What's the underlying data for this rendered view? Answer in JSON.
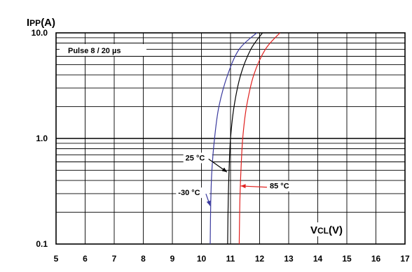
{
  "chart_data": {
    "type": "line",
    "y_label_main": "I",
    "y_label_sub": "PP",
    "y_label_unit": "(A)",
    "x_label_main": "V",
    "x_label_sub": "CL",
    "x_label_unit": "(V)",
    "x_ticks": [
      "5",
      "6",
      "7",
      "8",
      "9",
      "10",
      "11",
      "12",
      "13",
      "14",
      "15",
      "16",
      "17"
    ],
    "y_ticks": [
      "0.1",
      "1.0",
      "10.0"
    ],
    "xlim": [
      5,
      17
    ],
    "ylim": [
      0.1,
      10
    ],
    "y_scale": "log",
    "grid": true,
    "note": "Pulse 8 / 20 µs",
    "colors": {
      "n30": "#3a3a9e",
      "p25": "#000000",
      "p85": "#e0201e",
      "grid": "#000000"
    },
    "series": [
      {
        "name": "-30 °C",
        "points": [
          [
            10.3,
            0.1
          ],
          [
            10.32,
            0.25
          ],
          [
            10.36,
            0.5
          ],
          [
            10.45,
            1.0
          ],
          [
            10.6,
            2.0
          ],
          [
            10.9,
            4.0
          ],
          [
            11.3,
            7.0
          ],
          [
            11.9,
            10.0
          ]
        ]
      },
      {
        "name": "25 °C",
        "points": [
          [
            10.9,
            0.1
          ],
          [
            10.92,
            0.25
          ],
          [
            10.95,
            0.5
          ],
          [
            11.0,
            1.0
          ],
          [
            11.12,
            2.0
          ],
          [
            11.35,
            4.0
          ],
          [
            11.7,
            7.0
          ],
          [
            12.1,
            10.0
          ]
        ]
      },
      {
        "name": "85 °C",
        "points": [
          [
            11.3,
            0.1
          ],
          [
            11.32,
            0.25
          ],
          [
            11.36,
            0.5
          ],
          [
            11.42,
            1.0
          ],
          [
            11.55,
            2.0
          ],
          [
            11.8,
            4.0
          ],
          [
            12.2,
            7.0
          ],
          [
            12.7,
            10.0
          ]
        ]
      }
    ],
    "annotations": [
      {
        "text": "25 °C",
        "label_x": 9.45,
        "label_y": 0.62,
        "arrow_to": [
          10.88,
          0.48
        ]
      },
      {
        "text": "-30 °C",
        "label_x": 9.2,
        "label_y": 0.29,
        "arrow_to": [
          10.3,
          0.23
        ]
      },
      {
        "text": "85 °C",
        "label_x": 12.35,
        "label_y": 0.335,
        "arrow_to": [
          11.35,
          0.355
        ]
      }
    ]
  }
}
